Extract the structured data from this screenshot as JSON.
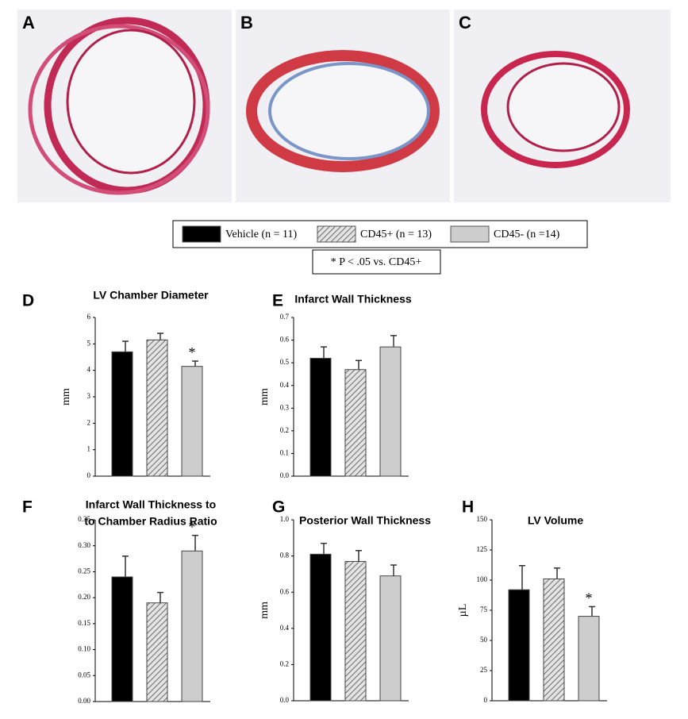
{
  "images": [
    {
      "label": "A"
    },
    {
      "label": "B"
    },
    {
      "label": "C"
    }
  ],
  "legend": {
    "items": [
      {
        "name": "Vehicle (n = 11)",
        "color": "#000000"
      },
      {
        "name": "CD45+ (n = 13)",
        "color": "#888888",
        "pattern": "hatch"
      },
      {
        "name": "CD45- (n =14)",
        "color": "#cdcdcd"
      }
    ],
    "note": "* P < .05 vs. CD45+"
  },
  "chart_data": [
    {
      "type": "bar",
      "panel": "D",
      "title": [
        "LV Chamber Diameter"
      ],
      "ylabel": "mm",
      "values": [
        4.7,
        5.15,
        4.15
      ],
      "errors": [
        0.4,
        0.25,
        0.2
      ],
      "annotation": "*",
      "ylim": [
        0,
        6
      ],
      "yticks": [
        0,
        1,
        2,
        3,
        4,
        5,
        6
      ]
    },
    {
      "type": "bar",
      "panel": "E",
      "title": [
        "Infarct Wall Thickness"
      ],
      "ylabel": "mm",
      "values": [
        0.52,
        0.47,
        0.57
      ],
      "errors": [
        0.05,
        0.04,
        0.05
      ],
      "ylim": [
        0,
        0.7
      ],
      "yticks": [
        {
          "value": 0,
          "label": "0.0"
        },
        0.1,
        0.2,
        0.3,
        0.4,
        0.5,
        0.6,
        0.7
      ]
    },
    {
      "type": "bar",
      "panel": "F",
      "title": [
        "Infarct Wall Thickness to",
        "to Chamber Radius Ratio"
      ],
      "values": [
        0.24,
        0.19,
        0.29
      ],
      "errors": [
        0.04,
        0.02,
        0.03
      ],
      "annotation": "*",
      "ylim": [
        0,
        0.35
      ],
      "yticks": [
        {
          "value": 0,
          "label": "0.00"
        },
        0.05,
        {
          "value": 0.1,
          "label": "0.10"
        },
        0.15,
        {
          "value": 0.2,
          "label": "0.20"
        },
        0.25,
        {
          "value": 0.3,
          "label": "0.30"
        },
        0.35
      ]
    },
    {
      "type": "bar",
      "panel": "G",
      "title": [
        "Posterior Wall Thickness"
      ],
      "ylabel": "mm",
      "values": [
        0.81,
        0.77,
        0.69
      ],
      "errors": [
        0.06,
        0.06,
        0.06
      ],
      "ylim": [
        0,
        1
      ],
      "yticks": [
        {
          "value": 0,
          "label": "0.0"
        },
        0.2,
        0.4,
        0.6,
        0.8,
        {
          "value": 1,
          "label": "1.0"
        }
      ]
    },
    {
      "type": "bar",
      "panel": "H",
      "title": [
        "LV Volume"
      ],
      "ylabel": "µL",
      "values": [
        92,
        101,
        70
      ],
      "errors": [
        20,
        9,
        8
      ],
      "annotation": "*",
      "ylim": [
        0,
        150
      ],
      "yticks": [
        0,
        25,
        50,
        75,
        100,
        125,
        150
      ]
    }
  ]
}
